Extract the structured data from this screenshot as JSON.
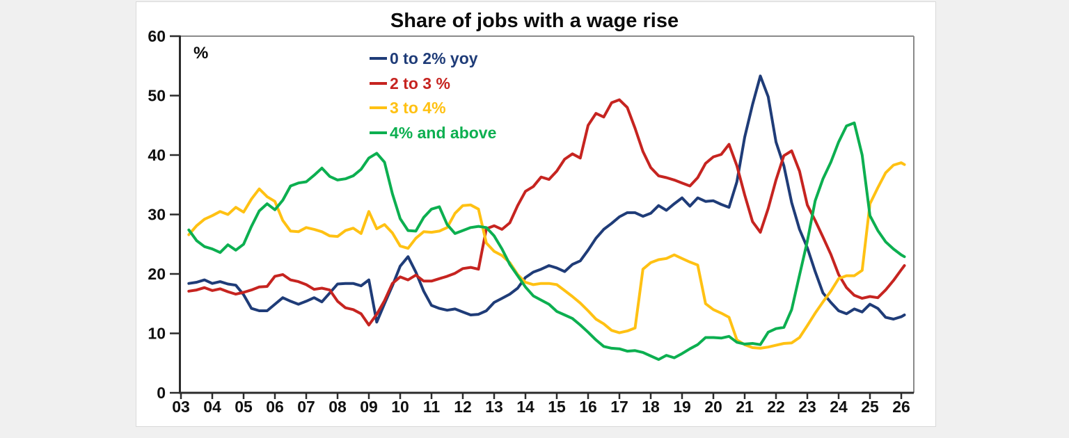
{
  "chart_data": {
    "type": "line",
    "title": "Share of jobs with a wage rise",
    "unit_label": "%",
    "xlabel": "",
    "ylabel": "%",
    "ylim": [
      0,
      60
    ],
    "y_ticks": [
      0,
      10,
      20,
      30,
      40,
      50,
      60
    ],
    "x_tick_labels": [
      "03",
      "04",
      "05",
      "06",
      "07",
      "08",
      "09",
      "10",
      "11",
      "12",
      "13",
      "14",
      "15",
      "16",
      "17",
      "18",
      "19",
      "20",
      "21",
      "22",
      "23",
      "24",
      "25",
      "26"
    ],
    "grid": false,
    "legend_position": "top-center-inside",
    "x": [
      3.25,
      3.5,
      3.75,
      4,
      4.25,
      4.5,
      4.75,
      5,
      5.25,
      5.5,
      5.75,
      6,
      6.25,
      6.5,
      6.75,
      7,
      7.25,
      7.5,
      7.75,
      8,
      8.25,
      8.5,
      8.75,
      9,
      9.25,
      9.5,
      9.75,
      10,
      10.25,
      10.5,
      10.75,
      11,
      11.25,
      11.5,
      11.75,
      12,
      12.25,
      12.5,
      12.75,
      13,
      13.25,
      13.5,
      13.75,
      14,
      14.25,
      14.5,
      14.75,
      15,
      15.25,
      15.5,
      15.75,
      16,
      16.25,
      16.5,
      16.75,
      17,
      17.25,
      17.5,
      17.75,
      18,
      18.25,
      18.5,
      18.75,
      19,
      19.25,
      19.5,
      19.75,
      20,
      20.25,
      20.5,
      20.75,
      21,
      21.25,
      21.5,
      21.75,
      22,
      22.25,
      22.5,
      22.75,
      23,
      23.25,
      23.5,
      23.75,
      24,
      24.25,
      24.5,
      24.75,
      25,
      25.25,
      25.5,
      25.75,
      26,
      26.1
    ],
    "series": [
      {
        "name": "0 to 2% yoy",
        "slug": "0-to-2pct-yoy",
        "color": "#1f3c78",
        "values": [
          18.4,
          18.6,
          19.0,
          18.4,
          18.7,
          18.3,
          18.1,
          16.5,
          14.2,
          13.8,
          13.8,
          14.9,
          16.0,
          15.4,
          14.9,
          15.4,
          16.0,
          15.3,
          16.8,
          18.3,
          18.4,
          18.4,
          18.0,
          19.0,
          11.9,
          15.0,
          18.0,
          21.3,
          22.9,
          20.3,
          17.1,
          14.7,
          14.2,
          13.9,
          14.1,
          13.6,
          13.1,
          13.2,
          13.8,
          15.2,
          15.9,
          16.6,
          17.6,
          19.4,
          20.3,
          20.8,
          21.4,
          21.0,
          20.4,
          21.6,
          22.2,
          24.0,
          26.0,
          27.5,
          28.5,
          29.6,
          30.3,
          30.3,
          29.7,
          30.2,
          31.5,
          30.7,
          31.8,
          32.8,
          31.4,
          32.8,
          32.2,
          32.3,
          31.7,
          31.2,
          35.5,
          43.0,
          48.5,
          53.3,
          49.8,
          42.2,
          38.2,
          32.0,
          27.5,
          24.4,
          20.4,
          16.8,
          15.2,
          13.8,
          13.3,
          14.1,
          13.6,
          14.9,
          14.2,
          12.7,
          12.4,
          12.8,
          13.1
        ]
      },
      {
        "name": "2 to 3 %",
        "slug": "2-to-3pct",
        "color": "#c62420",
        "values": [
          17.1,
          17.3,
          17.7,
          17.2,
          17.5,
          17.0,
          16.6,
          16.9,
          17.3,
          17.8,
          17.9,
          19.6,
          19.9,
          19.0,
          18.7,
          18.2,
          17.4,
          17.6,
          17.3,
          15.4,
          14.3,
          14.0,
          13.3,
          11.4,
          13.2,
          15.5,
          18.4,
          19.5,
          19.0,
          19.8,
          18.8,
          18.8,
          19.2,
          19.6,
          20.1,
          20.9,
          21.1,
          20.8,
          27.6,
          28.1,
          27.5,
          28.6,
          31.5,
          33.9,
          34.7,
          36.3,
          35.9,
          37.3,
          39.3,
          40.2,
          39.5,
          45.0,
          47.0,
          46.4,
          48.8,
          49.3,
          48.0,
          44.5,
          40.6,
          37.9,
          36.5,
          36.2,
          35.8,
          35.3,
          34.8,
          36.2,
          38.6,
          39.7,
          40.1,
          41.8,
          38.2,
          33.3,
          28.8,
          27.0,
          31.0,
          35.8,
          39.9,
          40.7,
          37.3,
          31.6,
          29.0,
          26.2,
          23.3,
          19.9,
          17.7,
          16.4,
          15.9,
          16.2,
          16.0,
          17.3,
          18.9,
          20.7,
          21.4
        ]
      },
      {
        "name": "3 to 4%",
        "slug": "3-to-4pct",
        "color": "#ffc113",
        "values": [
          26.6,
          28.1,
          29.2,
          29.8,
          30.5,
          30.0,
          31.2,
          30.4,
          32.6,
          34.3,
          33.0,
          32.2,
          29.0,
          27.2,
          27.1,
          27.8,
          27.5,
          27.1,
          26.4,
          26.3,
          27.3,
          27.7,
          26.8,
          30.5,
          27.6,
          28.3,
          26.9,
          24.7,
          24.3,
          26.0,
          27.1,
          27.0,
          27.2,
          27.8,
          30.2,
          31.5,
          31.6,
          30.9,
          25.2,
          23.8,
          23.1,
          21.9,
          19.9,
          18.6,
          18.2,
          18.4,
          18.4,
          18.2,
          17.2,
          16.2,
          15.1,
          13.8,
          12.4,
          11.6,
          10.5,
          10.1,
          10.4,
          10.9,
          20.8,
          21.9,
          22.4,
          22.6,
          23.2,
          22.6,
          22.0,
          21.5,
          15.0,
          14.0,
          13.4,
          12.7,
          8.9,
          8.1,
          7.6,
          7.5,
          7.7,
          8.0,
          8.3,
          8.4,
          9.3,
          11.3,
          13.4,
          15.3,
          17.1,
          19.2,
          19.7,
          19.7,
          20.6,
          31.8,
          34.5,
          37.0,
          38.3,
          38.7,
          38.4
        ]
      },
      {
        "name": "4% and above",
        "slug": "4pct-and-above",
        "color": "#0caf50",
        "values": [
          27.4,
          25.6,
          24.6,
          24.2,
          23.6,
          24.9,
          24.0,
          25.0,
          28.0,
          30.6,
          31.8,
          30.8,
          32.4,
          34.8,
          35.3,
          35.5,
          36.6,
          37.8,
          36.4,
          35.8,
          36.0,
          36.5,
          37.6,
          39.5,
          40.3,
          38.8,
          33.5,
          29.3,
          27.3,
          27.2,
          29.5,
          30.9,
          31.3,
          28.3,
          26.8,
          27.3,
          27.8,
          28.0,
          27.8,
          26.4,
          24.2,
          21.6,
          19.7,
          17.8,
          16.3,
          15.6,
          14.9,
          13.7,
          13.1,
          12.5,
          11.4,
          10.2,
          8.9,
          7.8,
          7.5,
          7.4,
          7.0,
          7.1,
          6.8,
          6.2,
          5.6,
          6.3,
          5.9,
          6.6,
          7.4,
          8.1,
          9.3,
          9.3,
          9.2,
          9.5,
          8.5,
          8.2,
          8.3,
          8.1,
          10.2,
          10.8,
          11.0,
          14.0,
          19.8,
          25.5,
          32.3,
          36.0,
          38.8,
          42.2,
          44.9,
          45.4,
          40.0,
          29.8,
          27.3,
          25.4,
          24.2,
          23.2,
          22.9
        ]
      }
    ]
  }
}
